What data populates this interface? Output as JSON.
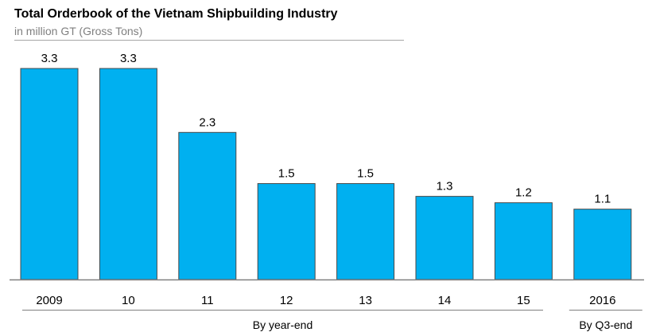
{
  "chart_data": {
    "type": "bar",
    "title": "Total Orderbook of the Vietnam Shipbuilding Industry",
    "subtitle": "in million GT (Gross Tons)",
    "categories": [
      "2009",
      "10",
      "11",
      "12",
      "13",
      "14",
      "15",
      "2016"
    ],
    "values": [
      3.3,
      3.3,
      2.3,
      1.5,
      1.5,
      1.3,
      1.2,
      1.1
    ],
    "data_labels": [
      "3.3",
      "3.3",
      "2.3",
      "1.5",
      "1.5",
      "1.3",
      "1.2",
      "1.1"
    ],
    "ylim": [
      0,
      3.3
    ],
    "grid": false,
    "legend": "none",
    "groups": [
      {
        "label": "By year-end",
        "from": 0,
        "to": 6
      },
      {
        "label": "By Q3-end",
        "from": 7,
        "to": 7
      }
    ],
    "colors": {
      "bar": "#00b0f0",
      "bar_outline": "#4a4a4a",
      "axis": "#808080"
    }
  }
}
